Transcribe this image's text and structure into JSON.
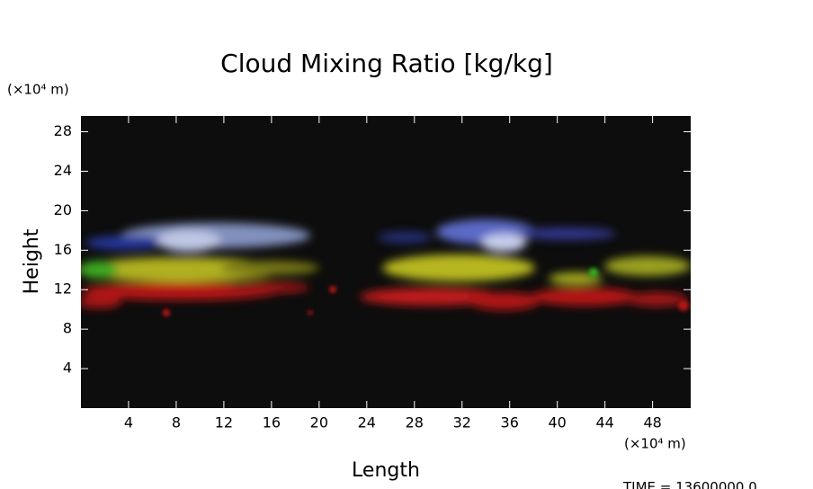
{
  "chart_data": {
    "type": "volume-render",
    "title": "Cloud Mixing Ratio [kg/kg]",
    "x_label": "Length",
    "y_label": "Height",
    "x_unit": "(×10⁴ m)",
    "y_unit": "(×10⁴ m)",
    "time_label": "TIME = 13600000.0",
    "xlim": [
      0,
      51.2
    ],
    "xticks": [
      4,
      8,
      12,
      16,
      20,
      24,
      28,
      32,
      36,
      40,
      44,
      48
    ],
    "ylim": [
      0,
      29.6
    ],
    "yticks": [
      4,
      8,
      12,
      16,
      20,
      24,
      28
    ],
    "background": "#0d0d0d"
  }
}
